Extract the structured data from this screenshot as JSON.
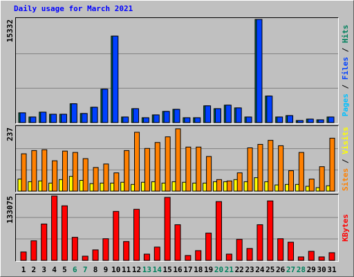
{
  "chart_data": [
    {
      "type": "bar",
      "title": "Daily usage for March 2021",
      "title_color": "#0000ff",
      "ylim": [
        0,
        15332
      ],
      "yticks": [
        15332
      ],
      "grid_divisions": 3,
      "separator": " / ",
      "series": [
        {
          "name": "Pages",
          "color": "#00c0ff",
          "values": [
            0,
            0,
            0,
            0,
            0,
            0,
            0,
            0,
            0,
            0,
            0,
            0,
            0,
            0,
            0,
            0,
            0,
            0,
            0,
            0,
            0,
            0,
            0,
            0,
            0,
            0,
            0,
            0,
            0,
            0,
            0
          ]
        },
        {
          "name": "Files",
          "color": "#0040ff",
          "values": [
            1450,
            830,
            1550,
            1240,
            1240,
            2800,
            1350,
            2280,
            4970,
            12850,
            830,
            2070,
            725,
            1140,
            1660,
            1970,
            725,
            725,
            2490,
            2070,
            2590,
            2180,
            830,
            15332,
            3940,
            830,
            1040,
            310,
            520,
            415,
            830
          ]
        },
        {
          "name": "Hits",
          "color": "#00805c",
          "values": [
            1450,
            830,
            1550,
            1240,
            1240,
            2800,
            1350,
            2280,
            4970,
            12850,
            830,
            2070,
            725,
            1140,
            1660,
            1970,
            725,
            725,
            2490,
            2070,
            2590,
            2180,
            830,
            15332,
            3940,
            830,
            1040,
            310,
            520,
            415,
            830
          ]
        }
      ]
    },
    {
      "type": "bar",
      "ylim": [
        0,
        237
      ],
      "yticks": [
        237
      ],
      "grid_divisions": 3,
      "separator": " / ",
      "series": [
        {
          "name": "Sites",
          "color": "#ff8000",
          "values": [
            139,
            151,
            154,
            113,
            149,
            144,
            121,
            88,
            101,
            68,
            151,
            219,
            159,
            181,
            202,
            232,
            164,
            164,
            129,
            43,
            38,
            68,
            161,
            174,
            189,
            169,
            76,
            144,
            45,
            91,
            197
          ]
        },
        {
          "name": "Visits",
          "color": "#ffff00",
          "values": [
            45,
            35,
            38,
            30,
            43,
            55,
            40,
            28,
            30,
            30,
            33,
            25,
            33,
            35,
            30,
            35,
            33,
            30,
            30,
            35,
            35,
            43,
            35,
            50,
            35,
            23,
            25,
            25,
            18,
            13,
            20
          ]
        }
      ]
    },
    {
      "type": "bar",
      "ylim": [
        0,
        133075
      ],
      "yticks": [
        133075
      ],
      "grid_divisions": 3,
      "series": [
        {
          "name": "KBytes",
          "color": "#ff0000",
          "values": [
            17400,
            40500,
            75200,
            133075,
            112800,
            47700,
            8700,
            21700,
            44800,
            101200,
            39000,
            105600,
            13000,
            27500,
            130200,
            73700,
            10100,
            20200,
            56400,
            121500,
            13000,
            43400,
            24600,
            73700,
            122900,
            44800,
            37600,
            7200,
            18800,
            7200,
            15900
          ]
        }
      ],
      "categories": [
        "1",
        "2",
        "3",
        "4",
        "5",
        "6",
        "7",
        "8",
        "9",
        "10",
        "11",
        "12",
        "13",
        "14",
        "15",
        "16",
        "17",
        "18",
        "19",
        "20",
        "21",
        "22",
        "23",
        "24",
        "25",
        "26",
        "27",
        "28",
        "29",
        "30",
        "31"
      ],
      "category_colors": [
        "#000000",
        "#000000",
        "#000000",
        "#000000",
        "#000000",
        "#00805c",
        "#00805c",
        "#000000",
        "#000000",
        "#000000",
        "#000000",
        "#000000",
        "#00805c",
        "#00805c",
        "#000000",
        "#000000",
        "#000000",
        "#000000",
        "#000000",
        "#00805c",
        "#00805c",
        "#000000",
        "#000000",
        "#000000",
        "#000000",
        "#000000",
        "#00805c",
        "#00805c",
        "#000000",
        "#000000",
        "#000000"
      ]
    }
  ]
}
